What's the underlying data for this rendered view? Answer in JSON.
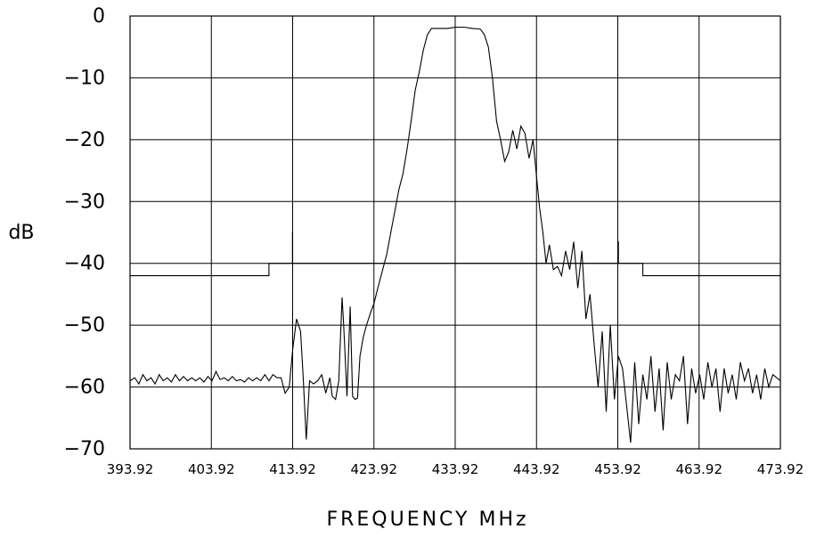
{
  "chart_data": {
    "type": "line",
    "title": "",
    "xlabel": "FREQUENCY MHz",
    "ylabel": "dB",
    "xlim": [
      393.92,
      473.92
    ],
    "ylim": [
      -70,
      0
    ],
    "xticks": [
      393.92,
      403.92,
      413.92,
      423.92,
      433.92,
      443.92,
      453.92,
      463.92,
      473.92
    ],
    "xtick_labels": [
      "393.92",
      "403.92",
      "413.92",
      "423.92",
      "433.92",
      "443.92",
      "453.92",
      "463.92",
      "473.92"
    ],
    "yticks": [
      0,
      -10,
      -20,
      -30,
      -40,
      -50,
      -60,
      -70
    ],
    "ytick_labels": [
      "0",
      "−10",
      "−20",
      "−30",
      "−40",
      "−50",
      "−60",
      "−70"
    ],
    "grid": true,
    "series": [
      {
        "role": "mask",
        "x": [
          393.92,
          411.0,
          411.0,
          413.9,
          413.9,
          413.92,
          413.92,
          453.92,
          453.92,
          454.0,
          454.0,
          457.0,
          457.0,
          473.92
        ],
        "y": [
          -42.0,
          -42.0,
          -40.0,
          -40.0,
          -35.0,
          -35.0,
          -40.0,
          -40.0,
          -36.5,
          -36.5,
          -40.0,
          -40.0,
          -42.0,
          -42.0
        ]
      },
      {
        "role": "response",
        "x": [
          393.92,
          394.5,
          395.0,
          395.5,
          396.0,
          396.5,
          397.0,
          397.5,
          398.0,
          398.5,
          399.0,
          399.5,
          400.0,
          400.5,
          401.0,
          401.5,
          402.0,
          402.5,
          403.0,
          403.5,
          404.0,
          404.5,
          405.0,
          405.5,
          406.0,
          406.5,
          407.0,
          407.5,
          408.0,
          408.5,
          409.0,
          409.5,
          410.0,
          410.5,
          411.0,
          411.5,
          412.0,
          412.5,
          413.0,
          413.5,
          413.92,
          414.4,
          414.9,
          415.2,
          415.6,
          416.0,
          416.5,
          417.0,
          417.5,
          418.0,
          418.5,
          418.8,
          419.2,
          419.6,
          420.0,
          420.2,
          420.6,
          421.0,
          421.3,
          421.6,
          421.9,
          422.2,
          422.6,
          423.0,
          423.5,
          423.92,
          424.4,
          425.0,
          425.5,
          426.0,
          426.5,
          427.0,
          427.5,
          428.0,
          428.5,
          429.0,
          429.5,
          430.0,
          430.5,
          431.0,
          432.0,
          433.0,
          434.0,
          435.0,
          436.0,
          437.0,
          437.5,
          438.0,
          438.5,
          439.0,
          439.5,
          440.0,
          440.5,
          441.0,
          441.5,
          442.0,
          442.5,
          443.0,
          443.5,
          443.92,
          444.3,
          444.7,
          445.1,
          445.5,
          446.0,
          446.5,
          447.0,
          447.5,
          448.0,
          448.5,
          449.0,
          449.5,
          450.0,
          450.5,
          451.0,
          451.5,
          452.0,
          452.5,
          453.0,
          453.5,
          454.0,
          454.5,
          455.0,
          455.5,
          456.0,
          456.5,
          457.0,
          457.5,
          458.0,
          458.5,
          459.0,
          459.5,
          460.0,
          460.5,
          461.0,
          461.5,
          462.0,
          462.5,
          463.0,
          463.5,
          464.0,
          464.5,
          465.0,
          465.5,
          466.0,
          466.5,
          467.0,
          467.5,
          468.0,
          468.5,
          469.0,
          469.5,
          470.0,
          470.5,
          471.0,
          471.5,
          472.0,
          472.5,
          473.0,
          473.92
        ],
        "y": [
          -59.0,
          -58.5,
          -59.5,
          -58.0,
          -59.0,
          -58.5,
          -59.5,
          -58.0,
          -59.0,
          -58.5,
          -59.2,
          -58.0,
          -59.0,
          -58.3,
          -59.0,
          -58.5,
          -59.0,
          -58.5,
          -59.2,
          -58.3,
          -59.0,
          -57.5,
          -58.8,
          -58.5,
          -59.0,
          -58.3,
          -59.0,
          -58.8,
          -59.2,
          -58.5,
          -59.0,
          -58.5,
          -59.0,
          -58.0,
          -59.0,
          -58.0,
          -58.5,
          -58.5,
          -61.0,
          -60.0,
          -54.0,
          -49.0,
          -51.0,
          -58.0,
          -68.5,
          -59.0,
          -59.5,
          -59.0,
          -58.0,
          -61.0,
          -58.5,
          -61.5,
          -62.0,
          -59.0,
          -45.5,
          -50.0,
          -61.5,
          -47.0,
          -61.5,
          -62.0,
          -61.8,
          -55.0,
          -52.0,
          -50.0,
          -48.0,
          -46.5,
          -44.0,
          -41.0,
          -38.5,
          -35.0,
          -31.5,
          -28.0,
          -25.5,
          -21.5,
          -17.0,
          -12.0,
          -9.0,
          -5.5,
          -3.0,
          -2.0,
          -2.0,
          -2.0,
          -1.8,
          -1.8,
          -2.0,
          -2.1,
          -3.0,
          -5.0,
          -10.0,
          -17.0,
          -20.0,
          -23.5,
          -22.0,
          -18.5,
          -21.5,
          -17.8,
          -19.0,
          -23.0,
          -20.0,
          -26.0,
          -31.0,
          -35.0,
          -40.0,
          -37.0,
          -41.0,
          -40.5,
          -42.0,
          -38.0,
          -41.0,
          -36.5,
          -44.0,
          -38.0,
          -49.0,
          -45.0,
          -53.0,
          -60.0,
          -51.0,
          -64.0,
          -50.0,
          -62.0,
          -55.0,
          -57.0,
          -63.0,
          -69.0,
          -56.0,
          -66.0,
          -58.0,
          -62.0,
          -55.0,
          -64.0,
          -57.0,
          -67.0,
          -56.0,
          -62.0,
          -58.0,
          -59.0,
          -55.0,
          -66.0,
          -57.0,
          -61.0,
          -58.0,
          -62.0,
          -56.0,
          -60.0,
          -57.0,
          -64.0,
          -57.0,
          -61.0,
          -58.0,
          -62.0,
          -56.0,
          -59.0,
          -57.0,
          -61.0,
          -58.0,
          -62.0,
          -57.0,
          -60.0,
          -58.0,
          -59.0
        ]
      }
    ]
  }
}
